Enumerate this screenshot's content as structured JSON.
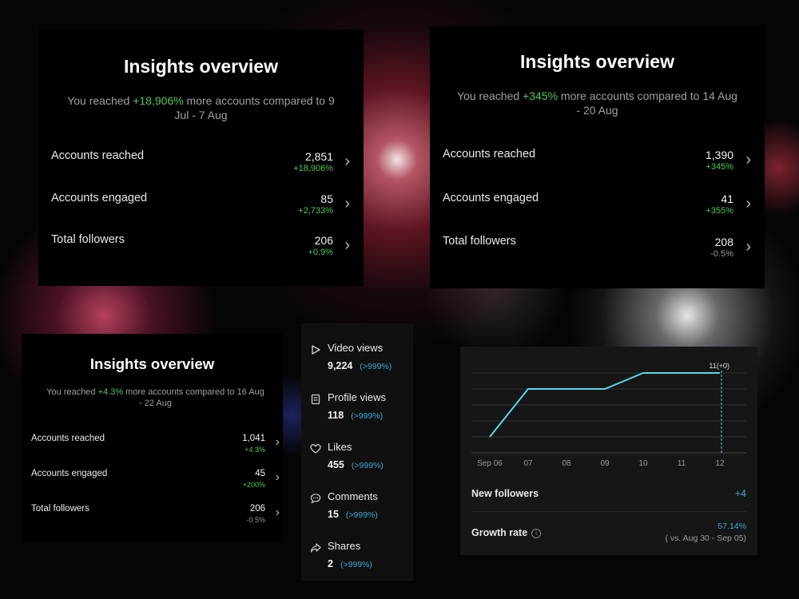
{
  "overview_panels": [
    {
      "title": "Insights overview",
      "subtitle_prefix": "You reached ",
      "subtitle_pct": "+18,906%",
      "subtitle_suffix": " more accounts compared to 9 Jul - 7 Aug",
      "rows": [
        {
          "label": "Accounts reached",
          "value": "2,851",
          "change": "+18,906%",
          "trend": "up"
        },
        {
          "label": "Accounts engaged",
          "value": "85",
          "change": "+2,733%",
          "trend": "up"
        },
        {
          "label": "Total followers",
          "value": "206",
          "change": "+0.9%",
          "trend": "up"
        }
      ]
    },
    {
      "title": "Insights overview",
      "subtitle_prefix": "You reached ",
      "subtitle_pct": "+345%",
      "subtitle_suffix": " more accounts compared to 14 Aug - 20 Aug",
      "rows": [
        {
          "label": "Accounts reached",
          "value": "1,390",
          "change": "+345%",
          "trend": "up"
        },
        {
          "label": "Accounts engaged",
          "value": "41",
          "change": "+355%",
          "trend": "up"
        },
        {
          "label": "Total followers",
          "value": "208",
          "change": "-0.5%",
          "trend": "down"
        }
      ]
    },
    {
      "title": "Insights overview",
      "subtitle_prefix": "You reached ",
      "subtitle_pct": "+4.3%",
      "subtitle_suffix": " more accounts compared to 16 Aug - 22 Aug",
      "rows": [
        {
          "label": "Accounts reached",
          "value": "1,041",
          "change": "+4.3%",
          "trend": "up"
        },
        {
          "label": "Accounts engaged",
          "value": "45",
          "change": "+200%",
          "trend": "up"
        },
        {
          "label": "Total followers",
          "value": "206",
          "change": "-0.5%",
          "trend": "down"
        }
      ]
    }
  ],
  "stats": [
    {
      "icon": "play-icon",
      "label": "Video views",
      "value": "9,224",
      "change": "(>999%)"
    },
    {
      "icon": "document-icon",
      "label": "Profile views",
      "value": "118",
      "change": "(>999%)"
    },
    {
      "icon": "heart-icon",
      "label": "Likes",
      "value": "455",
      "change": "(>999%)"
    },
    {
      "icon": "comment-icon",
      "label": "Comments",
      "value": "15",
      "change": "(>999%)"
    },
    {
      "icon": "share-icon",
      "label": "Shares",
      "value": "2",
      "change": "(>999%)"
    }
  ],
  "chart_data": {
    "type": "line",
    "categories": [
      "Sep 06",
      "07",
      "08",
      "09",
      "10",
      "11",
      "12"
    ],
    "series": [
      {
        "values": [
          7,
          10,
          10,
          10,
          11,
          11,
          11
        ]
      }
    ],
    "ylim": [
      6,
      12
    ],
    "grid": true,
    "annotation": "11(+0)",
    "annotation_index": 6,
    "line_color": "#5ad6e6"
  },
  "followers_summary": {
    "new_followers_label": "New followers",
    "new_followers_value": "+4",
    "growth_rate_label": "Growth rate",
    "growth_rate_value": "57.14%",
    "growth_rate_compare": "( vs. Aug 30 - Sep 05)"
  },
  "colors": {
    "green": "#4ccb5a",
    "blue": "#3fa7d6",
    "chevron": "chevron-right-icon"
  }
}
